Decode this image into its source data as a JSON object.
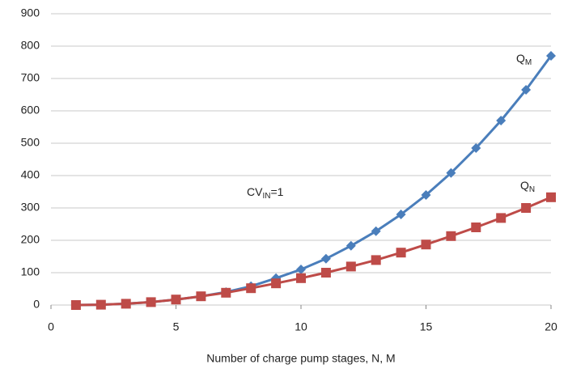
{
  "chart_data": {
    "type": "line",
    "x_label": "Number of charge pump stages, N, M",
    "x": [
      1,
      2,
      3,
      4,
      5,
      6,
      7,
      8,
      9,
      10,
      11,
      12,
      13,
      14,
      15,
      16,
      17,
      18,
      19,
      20
    ],
    "series": [
      {
        "name": "Q",
        "subscript": "M",
        "color": "#4a7ebb",
        "marker": "diamond",
        "values": [
          0,
          1,
          4,
          9,
          17,
          27,
          40,
          58,
          83,
          110,
          143,
          183,
          228,
          280,
          340,
          408,
          485,
          570,
          665,
          770
        ]
      },
      {
        "name": "Q",
        "subscript": "N",
        "color": "#be4b48",
        "marker": "square",
        "values": [
          0,
          1,
          4,
          9,
          17,
          27,
          38,
          52,
          67,
          83,
          100,
          119,
          139,
          162,
          187,
          213,
          240,
          269,
          300,
          333
        ]
      }
    ],
    "annotations": [
      {
        "text": "CV",
        "subscript": "IN",
        "tail": "=1"
      }
    ],
    "xlim": [
      0,
      20
    ],
    "xticks": [
      0,
      5,
      10,
      15,
      20
    ],
    "ylim": [
      0,
      900
    ],
    "yticks": [
      0,
      100,
      200,
      300,
      400,
      500,
      600,
      700,
      800,
      900
    ],
    "grid": true
  }
}
